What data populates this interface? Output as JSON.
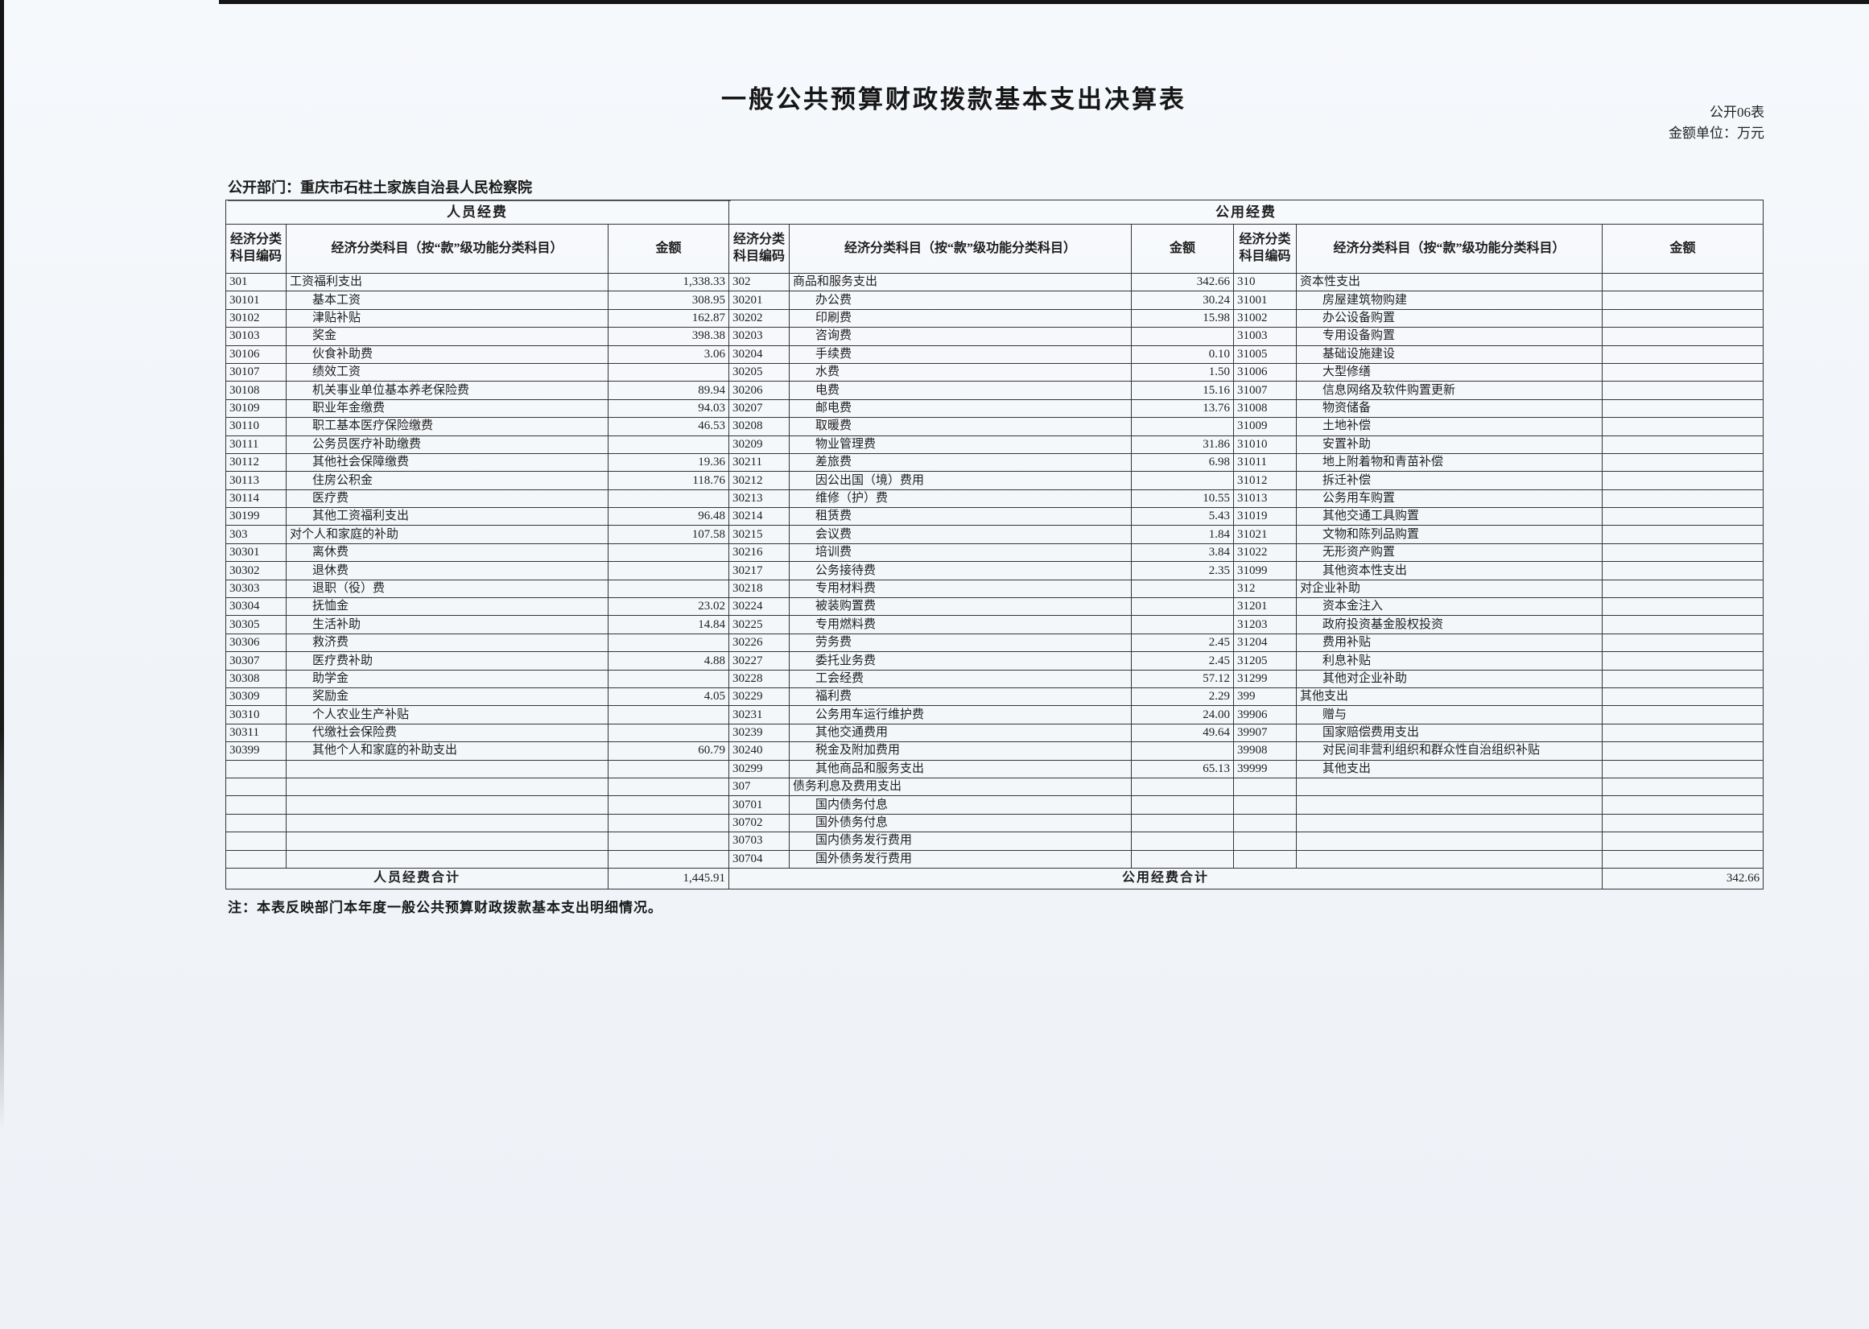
{
  "page": {
    "title": "一般公共预算财政拨款基本支出决算表",
    "table_no": "公开06表",
    "unit_label": "金额单位：万元",
    "department": "公开部门：重庆市石柱土家族自治县人民检察院",
    "note": "注：本表反映部门本年度一般公共预算财政拨款基本支出明细情况。"
  },
  "table": {
    "group_headers": [
      "人员经费",
      "公用经费"
    ],
    "col_headers": [
      "经济分类科目编码",
      "经济分类科目（按“款”级功能分类科目）",
      "金额"
    ],
    "row_count": 33,
    "personnel": {
      "rows": [
        {
          "code": "301",
          "item": "工资福利支出",
          "amount": "1,338.33"
        },
        {
          "code": "30101",
          "item": "基本工资",
          "amount": "308.95"
        },
        {
          "code": "30102",
          "item": "津贴补贴",
          "amount": "162.87"
        },
        {
          "code": "30103",
          "item": "奖金",
          "amount": "398.38"
        },
        {
          "code": "30106",
          "item": "伙食补助费",
          "amount": "3.06"
        },
        {
          "code": "30107",
          "item": "绩效工资",
          "amount": ""
        },
        {
          "code": "30108",
          "item": "机关事业单位基本养老保险费",
          "amount": "89.94"
        },
        {
          "code": "30109",
          "item": "职业年金缴费",
          "amount": "94.03"
        },
        {
          "code": "30110",
          "item": "职工基本医疗保险缴费",
          "amount": "46.53"
        },
        {
          "code": "30111",
          "item": "公务员医疗补助缴费",
          "amount": ""
        },
        {
          "code": "30112",
          "item": "其他社会保障缴费",
          "amount": "19.36"
        },
        {
          "code": "30113",
          "item": "住房公积金",
          "amount": "118.76"
        },
        {
          "code": "30114",
          "item": "医疗费",
          "amount": ""
        },
        {
          "code": "30199",
          "item": "其他工资福利支出",
          "amount": "96.48"
        },
        {
          "code": "303",
          "item": "对个人和家庭的补助",
          "amount": "107.58"
        },
        {
          "code": "30301",
          "item": "离休费",
          "amount": ""
        },
        {
          "code": "30302",
          "item": "退休费",
          "amount": ""
        },
        {
          "code": "30303",
          "item": "退职（役）费",
          "amount": ""
        },
        {
          "code": "30304",
          "item": "抚恤金",
          "amount": "23.02"
        },
        {
          "code": "30305",
          "item": "生活补助",
          "amount": "14.84"
        },
        {
          "code": "30306",
          "item": "救济费",
          "amount": ""
        },
        {
          "code": "30307",
          "item": "医疗费补助",
          "amount": "4.88"
        },
        {
          "code": "30308",
          "item": "助学金",
          "amount": ""
        },
        {
          "code": "30309",
          "item": "奖励金",
          "amount": "4.05"
        },
        {
          "code": "30310",
          "item": "个人农业生产补贴",
          "amount": ""
        },
        {
          "code": "30311",
          "item": "代缴社会保险费",
          "amount": ""
        },
        {
          "code": "30399",
          "item": "其他个人和家庭的补助支出",
          "amount": "60.79"
        }
      ],
      "total_label": "人员经费合计",
      "total_amount": "1,445.91"
    },
    "public_goods": {
      "rows": [
        {
          "code": "302",
          "item": "商品和服务支出",
          "amount": "342.66"
        },
        {
          "code": "30201",
          "item": "办公费",
          "amount": "30.24"
        },
        {
          "code": "30202",
          "item": "印刷费",
          "amount": "15.98"
        },
        {
          "code": "30203",
          "item": "咨询费",
          "amount": ""
        },
        {
          "code": "30204",
          "item": "手续费",
          "amount": "0.10"
        },
        {
          "code": "30205",
          "item": "水费",
          "amount": "1.50"
        },
        {
          "code": "30206",
          "item": "电费",
          "amount": "15.16"
        },
        {
          "code": "30207",
          "item": "邮电费",
          "amount": "13.76"
        },
        {
          "code": "30208",
          "item": "取暖费",
          "amount": ""
        },
        {
          "code": "30209",
          "item": "物业管理费",
          "amount": "31.86"
        },
        {
          "code": "30211",
          "item": "差旅费",
          "amount": "6.98"
        },
        {
          "code": "30212",
          "item": "因公出国（境）费用",
          "amount": ""
        },
        {
          "code": "30213",
          "item": "维修（护）费",
          "amount": "10.55"
        },
        {
          "code": "30214",
          "item": "租赁费",
          "amount": "5.43"
        },
        {
          "code": "30215",
          "item": "会议费",
          "amount": "1.84"
        },
        {
          "code": "30216",
          "item": "培训费",
          "amount": "3.84"
        },
        {
          "code": "30217",
          "item": "公务接待费",
          "amount": "2.35"
        },
        {
          "code": "30218",
          "item": "专用材料费",
          "amount": ""
        },
        {
          "code": "30224",
          "item": "被装购置费",
          "amount": ""
        },
        {
          "code": "30225",
          "item": "专用燃料费",
          "amount": ""
        },
        {
          "code": "30226",
          "item": "劳务费",
          "amount": "2.45"
        },
        {
          "code": "30227",
          "item": "委托业务费",
          "amount": "2.45"
        },
        {
          "code": "30228",
          "item": "工会经费",
          "amount": "57.12"
        },
        {
          "code": "30229",
          "item": "福利费",
          "amount": "2.29"
        },
        {
          "code": "30231",
          "item": "公务用车运行维护费",
          "amount": "24.00"
        },
        {
          "code": "30239",
          "item": "其他交通费用",
          "amount": "49.64"
        },
        {
          "code": "30240",
          "item": "税金及附加费用",
          "amount": ""
        },
        {
          "code": "30299",
          "item": "其他商品和服务支出",
          "amount": "65.13"
        },
        {
          "code": "307",
          "item": "债务利息及费用支出",
          "amount": ""
        },
        {
          "code": "30701",
          "item": "国内债务付息",
          "amount": ""
        },
        {
          "code": "30702",
          "item": "国外债务付息",
          "amount": ""
        },
        {
          "code": "30703",
          "item": "国内债务发行费用",
          "amount": ""
        },
        {
          "code": "30704",
          "item": "国外债务发行费用",
          "amount": ""
        }
      ],
      "total_label": "公用经费合计",
      "total_amount": "342.66"
    },
    "capital": {
      "rows": [
        {
          "code": "310",
          "item": "资本性支出",
          "amount": ""
        },
        {
          "code": "31001",
          "item": "房屋建筑物购建",
          "amount": ""
        },
        {
          "code": "31002",
          "item": "办公设备购置",
          "amount": ""
        },
        {
          "code": "31003",
          "item": "专用设备购置",
          "amount": ""
        },
        {
          "code": "31005",
          "item": "基础设施建设",
          "amount": ""
        },
        {
          "code": "31006",
          "item": "大型修缮",
          "amount": ""
        },
        {
          "code": "31007",
          "item": "信息网络及软件购置更新",
          "amount": ""
        },
        {
          "code": "31008",
          "item": "物资储备",
          "amount": ""
        },
        {
          "code": "31009",
          "item": "土地补偿",
          "amount": ""
        },
        {
          "code": "31010",
          "item": "安置补助",
          "amount": ""
        },
        {
          "code": "31011",
          "item": "地上附着物和青苗补偿",
          "amount": ""
        },
        {
          "code": "31012",
          "item": "拆迁补偿",
          "amount": ""
        },
        {
          "code": "31013",
          "item": "公务用车购置",
          "amount": ""
        },
        {
          "code": "31019",
          "item": "其他交通工具购置",
          "amount": ""
        },
        {
          "code": "31021",
          "item": "文物和陈列品购置",
          "amount": ""
        },
        {
          "code": "31022",
          "item": "无形资产购置",
          "amount": ""
        },
        {
          "code": "31099",
          "item": "其他资本性支出",
          "amount": ""
        },
        {
          "code": "312",
          "item": "对企业补助",
          "amount": ""
        },
        {
          "code": "31201",
          "item": "资本金注入",
          "amount": ""
        },
        {
          "code": "31203",
          "item": "政府投资基金股权投资",
          "amount": ""
        },
        {
          "code": "31204",
          "item": "费用补贴",
          "amount": ""
        },
        {
          "code": "31205",
          "item": "利息补贴",
          "amount": ""
        },
        {
          "code": "31299",
          "item": "其他对企业补助",
          "amount": ""
        },
        {
          "code": "399",
          "item": "其他支出",
          "amount": ""
        },
        {
          "code": "39906",
          "item": "赠与",
          "amount": ""
        },
        {
          "code": "39907",
          "item": "国家赔偿费用支出",
          "amount": ""
        },
        {
          "code": "39908",
          "item": "对民间非营利组织和群众性自治组织补贴",
          "amount": ""
        },
        {
          "code": "39999",
          "item": "其他支出",
          "amount": ""
        }
      ]
    }
  }
}
